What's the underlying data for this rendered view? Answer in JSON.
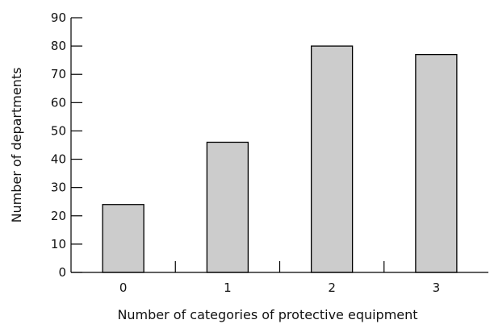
{
  "chart_data": {
    "type": "bar",
    "categories": [
      "0",
      "1",
      "2",
      "3"
    ],
    "values": [
      24,
      46,
      80,
      77
    ],
    "xlabel": "Number of categories of protective equipment",
    "ylabel": "Number of departments",
    "ylim": [
      0,
      90
    ],
    "yticks": [
      "0",
      "10",
      "20",
      "30",
      "40",
      "50",
      "60",
      "70",
      "80",
      "90"
    ],
    "grid": false,
    "bar_color": "#cccccc"
  }
}
